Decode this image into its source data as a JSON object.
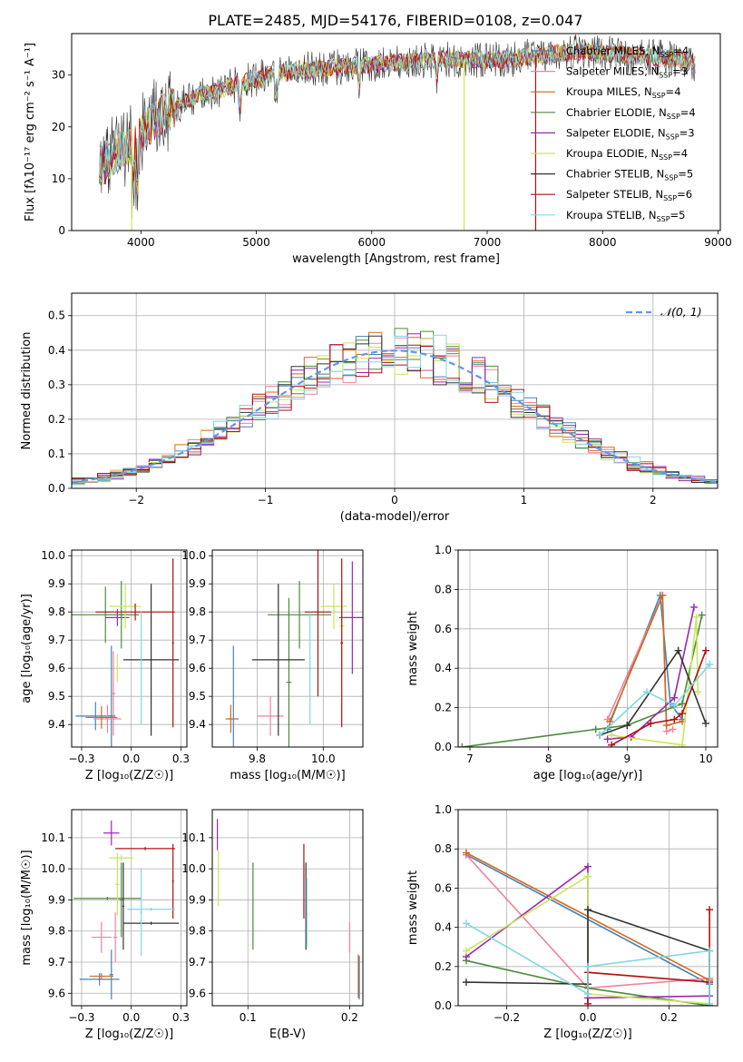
{
  "figure": {
    "title": "PLATE=2485, MJD=54176, FIBERID=0108, z=0.047"
  },
  "colors": {
    "grid": "#b0b0b0",
    "normal_curve": "#6495ed"
  },
  "models": [
    {
      "name": "Chabrier MILES",
      "nssp": "4",
      "color": "#4682b4"
    },
    {
      "name": "Salpeter MILES",
      "nssp": "3",
      "color": "#ee82a0"
    },
    {
      "name": "Kroupa MILES",
      "nssp": "4",
      "color": "#d2691e"
    },
    {
      "name": "Chabrier ELODIE",
      "nssp": "4",
      "color": "#4b8b3b"
    },
    {
      "name": "Salpeter ELODIE",
      "nssp": "3",
      "color": "#9c27b0"
    },
    {
      "name": "Kroupa ELODIE",
      "nssp": "4",
      "color": "#c8e65a"
    },
    {
      "name": "Chabrier STELIB",
      "nssp": "5",
      "color": "#333333"
    },
    {
      "name": "Salpeter STELIB",
      "nssp": "6",
      "color": "#b01010"
    },
    {
      "name": "Kroupa STELIB",
      "nssp": "5",
      "color": "#7fd8e0"
    }
  ],
  "chart_data": [
    {
      "id": "spectrum",
      "type": "line",
      "xlabel": "wavelength [Angstrom, rest frame]",
      "ylabel": "Flux [fλ10⁻¹⁷ erg cm⁻² s⁻¹ A⁻¹]",
      "xlim": [
        3400,
        9020
      ],
      "ylim": [
        0,
        38
      ],
      "xticks": [
        4000,
        5000,
        6000,
        7000,
        8000,
        9000
      ],
      "yticks": [
        0,
        10,
        20,
        30
      ],
      "continuum": {
        "x": [
          3640,
          3800,
          3950,
          4100,
          4300,
          4500,
          4800,
          5100,
          5400,
          5700,
          6000,
          6300,
          6600,
          6900,
          7200,
          7500,
          7800,
          8100,
          8400,
          8700,
          8800
        ],
        "y": [
          12,
          15,
          17,
          21,
          24,
          26,
          28,
          30,
          31,
          31.5,
          32,
          32.5,
          33,
          33,
          33,
          34,
          34.5,
          34,
          33.5,
          33,
          32
        ]
      },
      "drops": [
        {
          "model": 5,
          "x": 3920
        },
        {
          "model": 5,
          "x": 6800
        },
        {
          "model": 7,
          "x": 7420
        }
      ]
    },
    {
      "id": "residuals",
      "type": "line",
      "xlabel": "(data-model)/error",
      "ylabel": "Normed distribution",
      "xlim": [
        -2.5,
        2.5
      ],
      "ylim": [
        0,
        0.565
      ],
      "xticks": [
        -2,
        -1,
        0,
        1,
        2
      ],
      "yticks": [
        0.0,
        0.1,
        0.2,
        0.3,
        0.4,
        0.5
      ],
      "legend": "𝒩(0, 1)",
      "bin_width": 0.1
    },
    {
      "id": "age-vs-Z",
      "type": "scatter",
      "xlabel": "Z [log₁₀(Z/Z☉)]",
      "ylabel": "age  [log₁₀(age/yr)]",
      "xlim": [
        -0.3,
        0.28
      ],
      "ylim": [
        9.32,
        10.02
      ],
      "xticks": [
        -0.25,
        0.0,
        0.25
      ],
      "yticks": [
        9.4,
        9.5,
        9.6,
        9.7,
        9.8,
        9.9,
        10.0
      ],
      "points": [
        {
          "model": 0,
          "x": -0.18,
          "y": 9.43,
          "ex": 0.1,
          "ey": 0.05
        },
        {
          "model": 0,
          "x": -0.1,
          "y": 9.43,
          "ex": 0.02,
          "ey": 0.25
        },
        {
          "model": 1,
          "x": -0.12,
          "y": 9.42,
          "ex": 0.07,
          "ey": 0.05
        },
        {
          "model": 1,
          "x": -0.09,
          "y": 9.51,
          "ex": 0.01,
          "ey": 0.15
        },
        {
          "model": 2,
          "x": -0.15,
          "y": 9.425,
          "ex": 0.08,
          "ey": 0.04
        },
        {
          "model": 3,
          "x": -0.13,
          "y": 9.79,
          "ex": 0.17,
          "ey": 0.1
        },
        {
          "model": 3,
          "x": -0.05,
          "y": 9.79,
          "ex": 0.01,
          "ey": 0.12
        },
        {
          "model": 4,
          "x": -0.07,
          "y": 9.78,
          "ex": 0.06,
          "ey": 0.03
        },
        {
          "model": 5,
          "x": -0.03,
          "y": 9.82,
          "ex": 0.08,
          "ey": 0.08
        },
        {
          "model": 5,
          "x": -0.07,
          "y": 9.6,
          "ex": 0.01,
          "ey": 0.05
        },
        {
          "model": 6,
          "x": 0.1,
          "y": 9.63,
          "ex": 0.14,
          "ey": 0.27
        },
        {
          "model": 7,
          "x": 0.02,
          "y": 9.8,
          "ex": 0.2,
          "ey": 0.03
        },
        {
          "model": 7,
          "x": 0.21,
          "y": 9.69,
          "ex": 0.005,
          "ey": 0.3
        },
        {
          "model": 8,
          "x": 0.05,
          "y": 9.6,
          "ex": 0.005,
          "ey": 0.2
        }
      ]
    },
    {
      "id": "age-vs-mass",
      "type": "scatter",
      "xlabel": "mass [log₁₀(M/M☉)]",
      "ylabel": "",
      "xlim": [
        9.58,
        10.15
      ],
      "ylim": [
        9.32,
        10.02
      ],
      "xticks": [
        9.75,
        10.0
      ],
      "yticks": [
        9.4,
        9.5,
        9.6,
        9.7,
        9.8,
        9.9,
        10.0
      ],
      "points": [
        {
          "model": 0,
          "x": 9.66,
          "y": 9.42,
          "ex": 0.02,
          "ey": 0.26
        },
        {
          "model": 1,
          "x": 9.8,
          "y": 9.43,
          "ex": 0.05,
          "ey": 0.07
        },
        {
          "model": 2,
          "x": 9.65,
          "y": 9.42,
          "ex": 0.02,
          "ey": 0.05
        },
        {
          "model": 3,
          "x": 9.91,
          "y": 9.79,
          "ex": 0.12,
          "ey": 0.12
        },
        {
          "model": 3,
          "x": 9.87,
          "y": 9.55,
          "ex": 0.01,
          "ey": 0.3
        },
        {
          "model": 4,
          "x": 10.11,
          "y": 9.78,
          "ex": 0.05,
          "ey": 0.2
        },
        {
          "model": 5,
          "x": 10.04,
          "y": 9.82,
          "ex": 0.05,
          "ey": 0.08
        },
        {
          "model": 5,
          "x": 10.07,
          "y": 9.75,
          "ex": 0.01,
          "ey": 0.15
        },
        {
          "model": 6,
          "x": 9.83,
          "y": 9.63,
          "ex": 0.1,
          "ey": 0.27
        },
        {
          "model": 7,
          "x": 9.98,
          "y": 9.8,
          "ex": 0.05,
          "ey": 0.3
        },
        {
          "model": 7,
          "x": 10.07,
          "y": 9.69,
          "ex": 0.005,
          "ey": 0.3
        },
        {
          "model": 8,
          "x": 9.95,
          "y": 9.6,
          "ex": 0.005,
          "ey": 0.2
        }
      ]
    },
    {
      "id": "weight-vs-age",
      "type": "line",
      "xlabel": "age  [log₁₀(age/yr)]",
      "ylabel": "mass weight",
      "xlim": [
        6.85,
        10.15
      ],
      "ylim": [
        0,
        1
      ],
      "xticks": [
        7,
        8,
        9,
        10
      ],
      "yticks": [
        0.0,
        0.2,
        0.4,
        0.6,
        0.8,
        1.0
      ],
      "series": [
        {
          "model": 0,
          "x": [
            8.75,
            9.42,
            9.55,
            9.7
          ],
          "y": [
            0.09,
            0.77,
            0.22,
            0.14
          ]
        },
        {
          "model": 1,
          "x": [
            8.75,
            9.45,
            9.5,
            9.58
          ],
          "y": [
            0.14,
            0.77,
            0.08,
            0.09
          ]
        },
        {
          "model": 2,
          "x": [
            8.78,
            9.45,
            9.5,
            9.7
          ],
          "y": [
            0.13,
            0.77,
            0.11,
            0.13
          ]
        },
        {
          "model": 3,
          "x": [
            6.9,
            8.6,
            9.0,
            9.7,
            9.95
          ],
          "y": [
            0.0,
            0.09,
            0.11,
            0.22,
            0.67
          ]
        },
        {
          "model": 4,
          "x": [
            8.75,
            9.05,
            9.6,
            9.85
          ],
          "y": [
            0.04,
            0.05,
            0.25,
            0.71
          ]
        },
        {
          "model": 5,
          "x": [
            8.8,
            9.7,
            9.88,
            9.9
          ],
          "y": [
            0.06,
            0.01,
            0.66,
            0.28
          ]
        },
        {
          "model": 6,
          "x": [
            8.65,
            9.0,
            9.65,
            10.0
          ],
          "y": [
            0.06,
            0.11,
            0.49,
            0.12
          ]
        },
        {
          "model": 7,
          "x": [
            8.8,
            9.3,
            9.6,
            9.7,
            10.0
          ],
          "y": [
            0.01,
            0.12,
            0.14,
            0.17,
            0.49
          ]
        },
        {
          "model": 8,
          "x": [
            8.65,
            9.25,
            9.6,
            10.05
          ],
          "y": [
            0.06,
            0.28,
            0.21,
            0.42
          ]
        }
      ]
    },
    {
      "id": "mass-vs-Z",
      "type": "scatter",
      "xlabel": "Z [log₁₀(Z/Z☉)]",
      "ylabel": "mass [log₁₀(M/M☉)]",
      "xlim": [
        -0.3,
        0.28
      ],
      "ylim": [
        9.56,
        10.19
      ],
      "xticks": [
        -0.25,
        0.0,
        0.25
      ],
      "yticks": [
        9.6,
        9.7,
        9.8,
        9.9,
        10.0,
        10.1
      ],
      "points": [
        {
          "model": 0,
          "x": -0.16,
          "y": 9.645,
          "ex": 0.1,
          "ey": 0.02
        },
        {
          "model": 0,
          "x": -0.1,
          "y": 9.66,
          "ex": 0.01,
          "ey": 0.08
        },
        {
          "model": 1,
          "x": -0.15,
          "y": 9.78,
          "ex": 0.05,
          "ey": 0.05
        },
        {
          "model": 1,
          "x": -0.08,
          "y": 9.78,
          "ex": 0.01,
          "ey": 0.08
        },
        {
          "model": 2,
          "x": -0.15,
          "y": 9.655,
          "ex": 0.06,
          "ey": 0.01
        },
        {
          "model": 3,
          "x": -0.12,
          "y": 9.905,
          "ex": 0.17,
          "ey": 0.005
        },
        {
          "model": 3,
          "x": -0.05,
          "y": 9.9,
          "ex": 0.01,
          "ey": 0.12
        },
        {
          "model": 4,
          "x": -0.1,
          "y": 10.115,
          "ex": 0.04,
          "ey": 0.04
        },
        {
          "model": 5,
          "x": -0.05,
          "y": 10.035,
          "ex": 0.06,
          "ey": 0.01
        },
        {
          "model": 5,
          "x": -0.07,
          "y": 9.95,
          "ex": 0.01,
          "ey": 0.1
        },
        {
          "model": 6,
          "x": 0.1,
          "y": 9.825,
          "ex": 0.14,
          "ey": 0.005
        },
        {
          "model": 6,
          "x": -0.04,
          "y": 9.88,
          "ex": 0.005,
          "ey": 0.14
        },
        {
          "model": 7,
          "x": 0.07,
          "y": 10.065,
          "ex": 0.15,
          "ey": 0.005
        },
        {
          "model": 7,
          "x": 0.21,
          "y": 9.96,
          "ex": 0.005,
          "ey": 0.12
        },
        {
          "model": 8,
          "x": 0.1,
          "y": 9.87,
          "ex": 0.12,
          "ey": 0.005
        },
        {
          "model": 8,
          "x": 0.05,
          "y": 9.86,
          "ex": 0.005,
          "ey": 0.14
        }
      ]
    },
    {
      "id": "mass-vs-EBV",
      "type": "scatter",
      "xlabel": "E(B-V)",
      "ylabel": "",
      "xlim": [
        0.065,
        0.213
      ],
      "ylim": [
        9.56,
        10.19
      ],
      "xticks": [
        0.1,
        0.2
      ],
      "yticks": [
        9.6,
        9.7,
        9.8,
        9.9,
        10.0,
        10.1
      ],
      "points": [
        {
          "model": 0,
          "x": 0.2095,
          "y": 9.65,
          "ex": 0.0,
          "ey": 0.07
        },
        {
          "model": 1,
          "x": 0.2,
          "y": 9.78,
          "ex": 0.0,
          "ey": 0.05
        },
        {
          "model": 2,
          "x": 0.2085,
          "y": 9.655,
          "ex": 0.0,
          "ey": 0.07
        },
        {
          "model": 3,
          "x": 0.105,
          "y": 9.88,
          "ex": 0.0,
          "ey": 0.14
        },
        {
          "model": 4,
          "x": 0.07,
          "y": 10.11,
          "ex": 0.0,
          "ey": 0.05
        },
        {
          "model": 5,
          "x": 0.071,
          "y": 9.97,
          "ex": 0.0,
          "ey": 0.09
        },
        {
          "model": 6,
          "x": 0.157,
          "y": 9.88,
          "ex": 0.0,
          "ey": 0.14
        },
        {
          "model": 7,
          "x": 0.155,
          "y": 9.96,
          "ex": 0.0,
          "ey": 0.12
        },
        {
          "model": 8,
          "x": 0.158,
          "y": 9.86,
          "ex": 0.0,
          "ey": 0.11
        }
      ]
    },
    {
      "id": "weight-vs-Z",
      "type": "line",
      "xlabel": "Z [log₁₀(Z/Z☉)]",
      "ylabel": "mass weight",
      "xlim": [
        -0.32,
        0.32
      ],
      "ylim": [
        0,
        1
      ],
      "xticks": [
        -0.2,
        0.0,
        0.2
      ],
      "yticks": [
        0.0,
        0.2,
        0.4,
        0.6,
        0.8,
        1.0
      ],
      "series": [
        {
          "model": 0,
          "x": [
            -0.3,
            0.3
          ],
          "y": [
            0.77,
            0.11
          ]
        },
        {
          "model": 1,
          "x": [
            -0.3,
            0.0,
            0.3
          ],
          "y": [
            0.77,
            0.09,
            0.14
          ]
        },
        {
          "model": 2,
          "x": [
            -0.3,
            0.3
          ],
          "y": [
            0.78,
            0.13
          ]
        },
        {
          "model": 3,
          "x": [
            -0.3,
            0.0,
            0.3
          ],
          "y": [
            0.23,
            0.09,
            0.0
          ]
        },
        {
          "model": 4,
          "x": [
            -0.3,
            0.0,
            0.0,
            0.3
          ],
          "y": [
            0.25,
            0.71,
            0.04,
            0.05
          ]
        },
        {
          "model": 5,
          "x": [
            -0.3,
            0.0,
            0.0,
            0.3
          ],
          "y": [
            0.28,
            0.66,
            0.06,
            0.01
          ]
        },
        {
          "model": 6,
          "x": [
            -0.3,
            0.0,
            0.0,
            0.3,
            0.3
          ],
          "y": [
            0.12,
            0.11,
            0.49,
            0.28,
            0.0
          ]
        },
        {
          "model": 7,
          "x": [
            0.0,
            0.0,
            0.3,
            0.3
          ],
          "y": [
            0.01,
            0.17,
            0.12,
            0.49
          ]
        },
        {
          "model": 8,
          "x": [
            -0.3,
            0.0,
            0.0,
            0.3,
            0.3
          ],
          "y": [
            0.42,
            0.06,
            0.2,
            0.28,
            0.01
          ]
        }
      ]
    }
  ]
}
